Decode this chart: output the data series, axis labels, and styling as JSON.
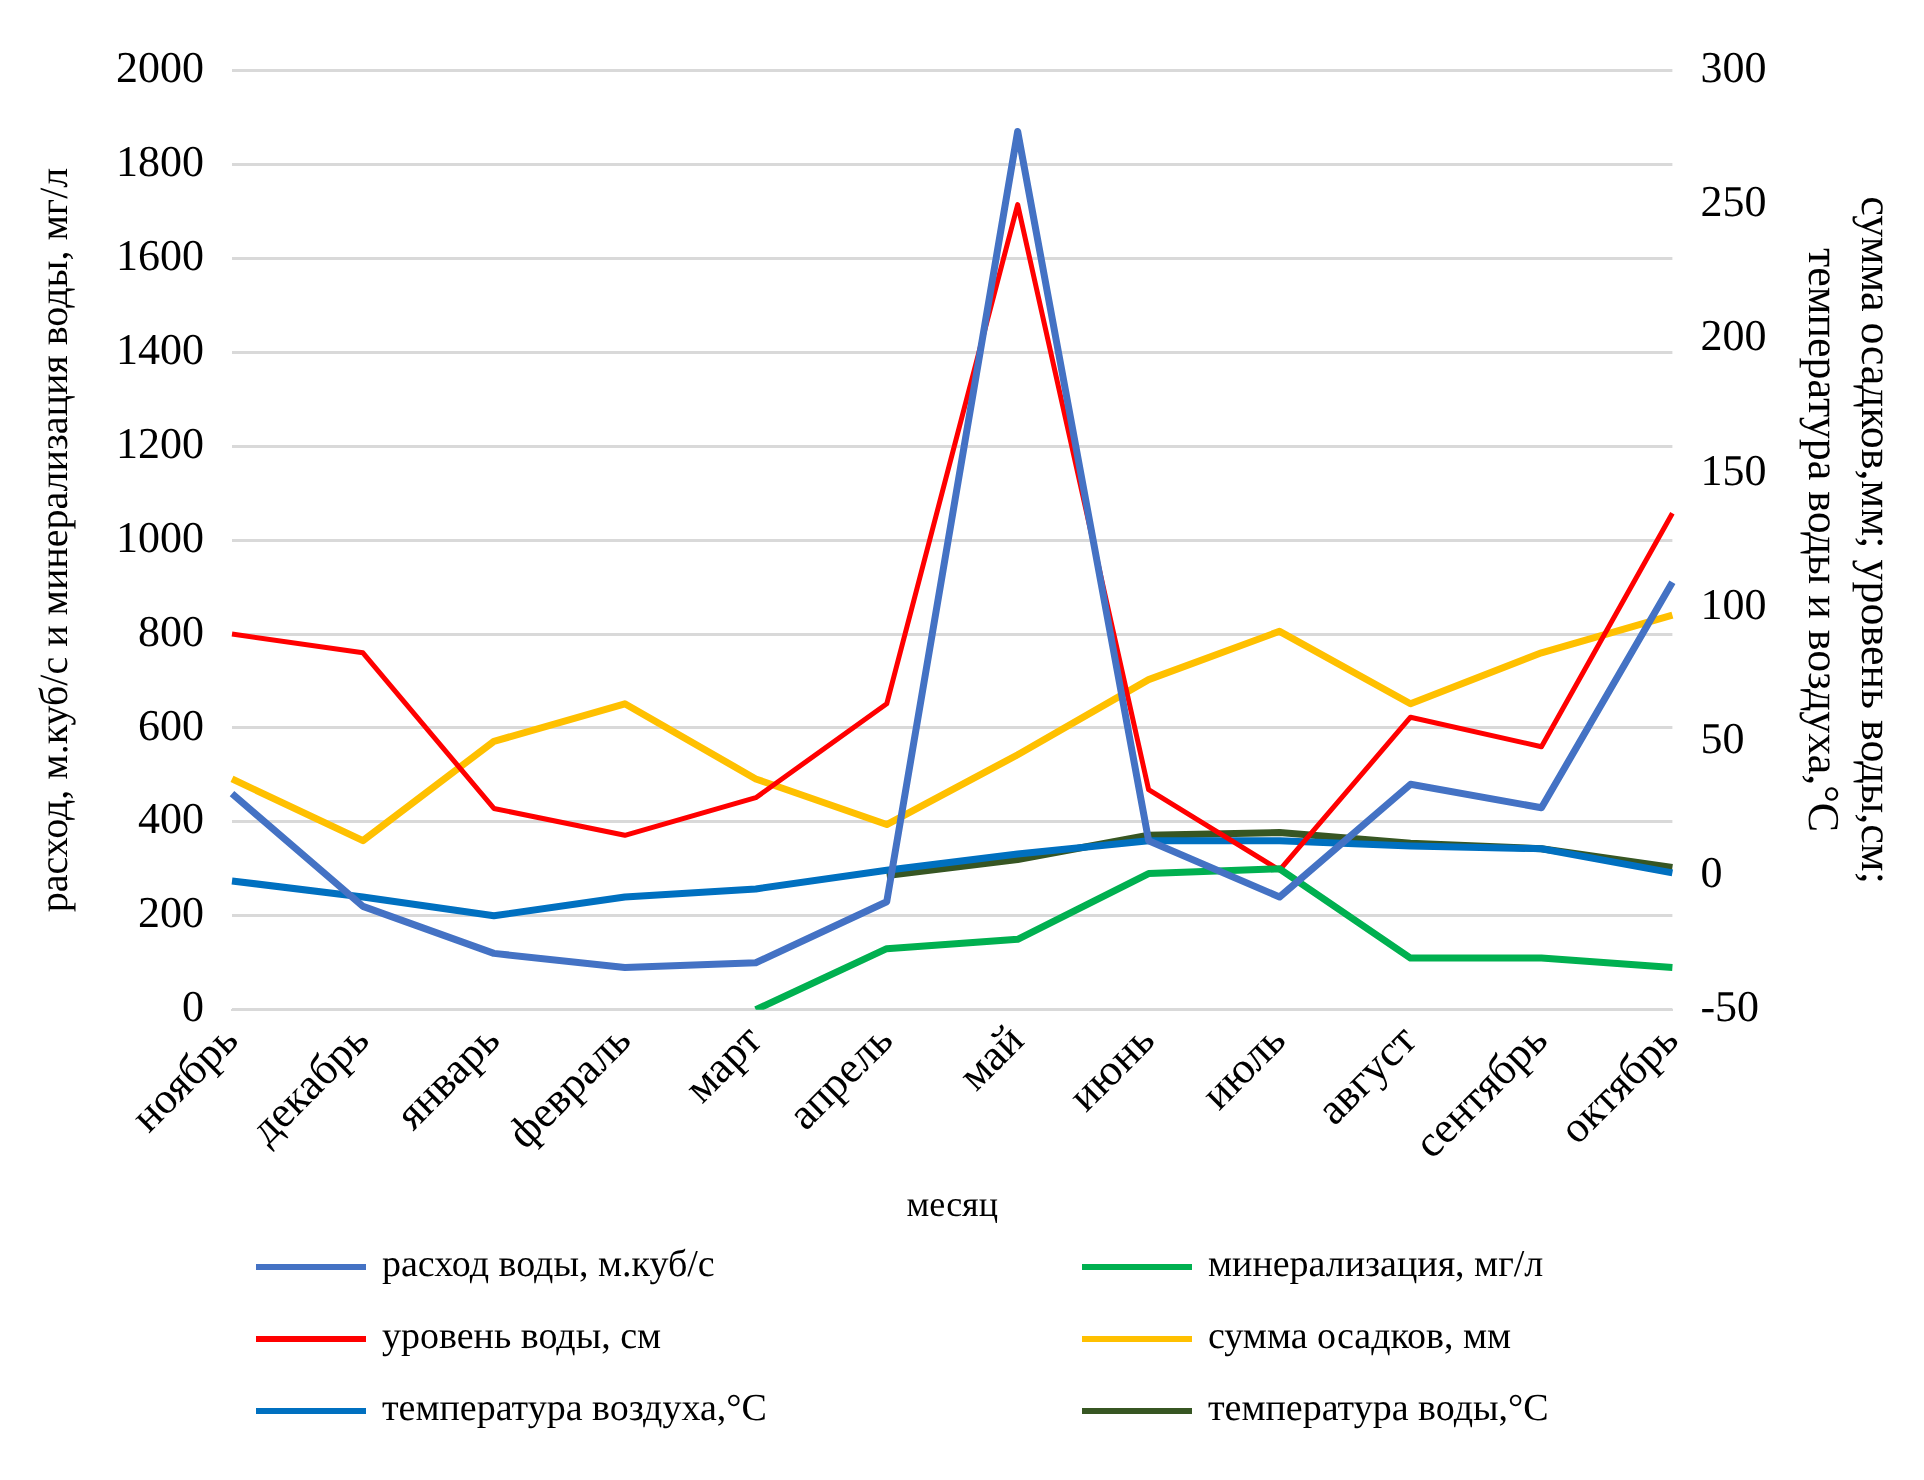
{
  "chart_data": {
    "type": "line",
    "xlabel": "месяц",
    "ylabel": "расход, м.куб/с и минерализация воды, мг/л",
    "y2label": "сумма осадков,мм; уровень воды,см; температура воды и воздуха,°С",
    "categories": [
      "ноябрь",
      "декабрь",
      "январь",
      "февраль",
      "март",
      "апрель",
      "май",
      "июнь",
      "июль",
      "август",
      "сентябрь",
      "октябрь"
    ],
    "series": [
      {
        "name": "расход воды, м.куб/с",
        "color": "#4472c4",
        "values": [
          460,
          220,
          120,
          90,
          100,
          230,
          1870,
          360,
          240,
          480,
          430,
          910
        ]
      },
      {
        "name": "минерализация, мг/л",
        "color": "#00b050",
        "values": [
          null,
          null,
          null,
          null,
          0,
          130,
          150,
          290,
          300,
          110,
          110,
          90
        ]
      },
      {
        "name": "уровень воды, см",
        "color": "#ff0000",
        "axis": "y2",
        "values": [
          90,
          83,
          25,
          15,
          29,
          64,
          250,
          32,
          2,
          59,
          48,
          135
        ]
      },
      {
        "name": "сумма осадков, мм",
        "color": "#ffc000",
        "axis": "y2",
        "values": [
          36,
          13,
          50,
          64,
          36,
          19,
          45,
          73,
          91,
          64,
          83,
          97
        ]
      },
      {
        "name": "температура воздуха,°С",
        "color": "#0070c0",
        "axis": "y2",
        "values": [
          -2,
          -8,
          -15,
          -8,
          -5,
          2,
          8,
          13,
          13,
          11,
          10,
          1
        ]
      },
      {
        "name": "температура воды,°С",
        "color": "#375623",
        "axis": "y2",
        "values": [
          null,
          null,
          null,
          null,
          null,
          0,
          6,
          15,
          16,
          12,
          10,
          3
        ]
      }
    ],
    "ylim": [
      0,
      2000
    ],
    "yticks": [
      0,
      200,
      400,
      600,
      800,
      1000,
      1200,
      1400,
      1600,
      1800,
      2000
    ],
    "y2lim": [
      -50,
      300
    ],
    "y2ticks": [
      -50,
      0,
      50,
      100,
      150,
      200,
      250,
      300
    ],
    "grid": "y",
    "legend": "bottom",
    "marker": "none",
    "line_style": "solid"
  }
}
